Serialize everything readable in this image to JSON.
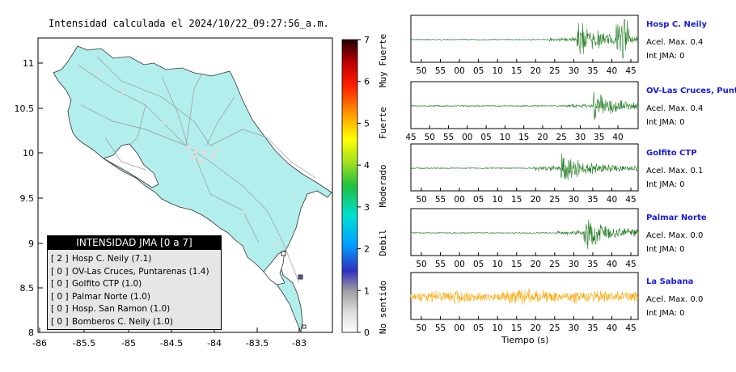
{
  "map": {
    "title": "Intensidad calculada el 2024/10/22_09:27:56_a.m.",
    "x_ticks": [
      "-86",
      "-85.5",
      "-85",
      "-84.5",
      "-84",
      "-83.5",
      "-83"
    ],
    "y_ticks": [
      "11",
      "10.5",
      "10",
      "9.5",
      "9",
      "8.5",
      "8"
    ],
    "xlim": [
      -86,
      -82.5
    ],
    "ylim": [
      8,
      11.3
    ],
    "land_color": "#b2eeec",
    "legend_title": "INTENSIDAD JMA [0 a 7]",
    "legend_rows": [
      {
        "level": "[ 2 ]",
        "text": "Hosp C. Neily (7.1)"
      },
      {
        "level": "[ 0 ]",
        "text": "OV-Las Cruces, Puntarenas (1.4)"
      },
      {
        "level": "[ 0 ]",
        "text": "Golfito CTP (1.0)"
      },
      {
        "level": "[ 0 ]",
        "text": "Palmar Norte (1.0)"
      },
      {
        "level": "[ 0 ]",
        "text": "Hosp. San Ramon (1.0)"
      },
      {
        "level": "[ 0 ]",
        "text": "Bomberos C. Neily (1.0)"
      }
    ]
  },
  "colorbar": {
    "ticks": [
      "0",
      "1",
      "2",
      "3",
      "4",
      "5",
      "6",
      "7"
    ],
    "labels": [
      "No sentido",
      "Debil",
      "Moderado",
      "Fuerte",
      "Muy Fuerte"
    ],
    "range": [
      0,
      7
    ]
  },
  "stations": [
    {
      "name": "Hosp C. Neily",
      "acc": "Acel. Max. 0.4",
      "jma": "Int JMA: 0",
      "ticks": [
        "50",
        "55",
        "00",
        "05",
        "10",
        "15",
        "20",
        "25",
        "30",
        "35",
        "40",
        "45"
      ],
      "start": 48,
      "color": "#1f7a1f",
      "onset": 0.73,
      "amp": 0.9
    },
    {
      "name": "OV-Las Cruces, Puntar",
      "acc": "Acel. Max. 0.4",
      "jma": "Int JMA: 0",
      "ticks": [
        "45",
        "50",
        "55",
        "00",
        "05",
        "10",
        "15",
        "20",
        "25",
        "30",
        "35",
        "40"
      ],
      "start": 43,
      "color": "#1f7a1f",
      "onset": 0.8,
      "amp": 0.85
    },
    {
      "name": "Golfito CTP",
      "acc": "Acel. Max. 0.1",
      "jma": "Int JMA: 0",
      "ticks": [
        "50",
        "55",
        "00",
        "05",
        "10",
        "15",
        "20",
        "25",
        "30",
        "35",
        "40",
        "45"
      ],
      "start": 48,
      "color": "#1f7a1f",
      "onset": 0.66,
      "amp": 0.9
    },
    {
      "name": "Palmar Norte",
      "acc": "Acel. Max. 0.0",
      "jma": "Int JMA: 0",
      "ticks": [
        "50",
        "55",
        "00",
        "05",
        "10",
        "15",
        "20",
        "25",
        "30",
        "35",
        "40",
        "45"
      ],
      "start": 48,
      "color": "#1f7a1f",
      "onset": 0.76,
      "amp": 0.9
    },
    {
      "name": "La Sabana",
      "acc": "Acel. Max. 0.0",
      "jma": "Int JMA: 0",
      "ticks": [
        "50",
        "55",
        "00",
        "05",
        "10",
        "15",
        "20",
        "25",
        "30",
        "35",
        "40",
        "45"
      ],
      "start": 48,
      "color": "#ffa500",
      "onset": 0.0,
      "amp": 0.55
    }
  ],
  "xlabel": "Tiempo (s)",
  "chart_data": [
    {
      "type": "heatmap",
      "title": "Intensidad calculada el 2024/10/22_09:27:56_a.m.",
      "xlabel": "",
      "ylabel": "",
      "xlim": [
        -86,
        -82.5
      ],
      "ylim": [
        8,
        11.3
      ],
      "colorbar_range": [
        0,
        7
      ],
      "legend": "bottom-left"
    },
    {
      "type": "line",
      "xlabel": "Tiempo (s)",
      "series": [
        {
          "name": "Hosp C. Neily",
          "peak_acc": 0.4
        },
        {
          "name": "OV-Las Cruces, Puntar",
          "peak_acc": 0.4
        },
        {
          "name": "Golfito CTP",
          "peak_acc": 0.1
        },
        {
          "name": "Palmar Norte",
          "peak_acc": 0.0
        },
        {
          "name": "La Sabana",
          "peak_acc": 0.0
        }
      ]
    }
  ]
}
